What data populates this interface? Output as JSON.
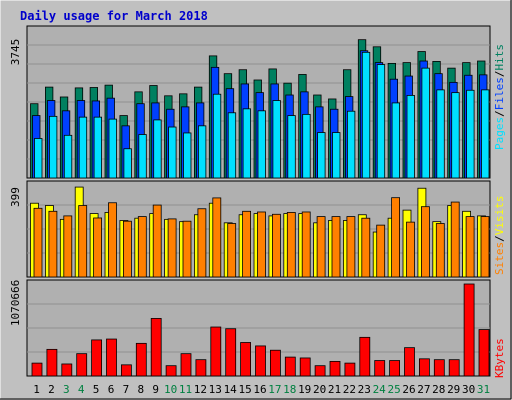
{
  "colors": {
    "background": "#c0c0c0",
    "panel_bg": "#b0b0b0",
    "hits": "#008060",
    "files": "#0040ff",
    "pages": "#00e0ff",
    "visits": "#ffff00",
    "sites": "#ff8000",
    "kbytes": "#ff0000",
    "title": "#0000cc",
    "weekend_label": "#008040",
    "weekday_label": "#000000"
  },
  "chart_data": [
    {
      "type": "bar",
      "title": "Daily usage for March 2018",
      "panel": "top",
      "ymax_label": "3745",
      "ylim": [
        0,
        3745
      ],
      "legend": [
        "Pages",
        "/",
        "Files",
        "/",
        "Hits"
      ],
      "categories": [
        "1",
        "2",
        "3",
        "4",
        "5",
        "6",
        "7",
        "8",
        "9",
        "10",
        "11",
        "12",
        "13",
        "14",
        "15",
        "16",
        "17",
        "18",
        "19",
        "20",
        "21",
        "22",
        "23",
        "24",
        "25",
        "26",
        "27",
        "28",
        "29",
        "30",
        "31"
      ],
      "series": [
        {
          "name": "Hits",
          "values": [
            1880,
            2300,
            2050,
            2280,
            2290,
            2350,
            1580,
            2180,
            2340,
            2080,
            2130,
            2300,
            3090,
            2640,
            2740,
            2480,
            2760,
            2400,
            2620,
            2100,
            2000,
            2740,
            3500,
            3320,
            2900,
            2920,
            3200,
            2950,
            2780,
            2920,
            2960
          ]
        },
        {
          "name": "Files",
          "values": [
            1580,
            1960,
            1700,
            1960,
            1950,
            2020,
            1320,
            1880,
            1900,
            1740,
            1800,
            1900,
            2800,
            2260,
            2380,
            2160,
            2380,
            2100,
            2180,
            1800,
            1740,
            2060,
            3220,
            2920,
            2500,
            2580,
            2960,
            2640,
            2420,
            2600,
            2610
          ]
        },
        {
          "name": "Pages",
          "values": [
            1000,
            1560,
            1080,
            1540,
            1540,
            1490,
            740,
            1100,
            1470,
            1290,
            1140,
            1320,
            2120,
            1650,
            1750,
            1700,
            1960,
            1580,
            1610,
            1150,
            1150,
            1690,
            3180,
            2870,
            1900,
            2090,
            2780,
            2230,
            2160,
            2220,
            2230
          ]
        }
      ]
    },
    {
      "type": "bar",
      "panel": "middle",
      "ymax_label": "399",
      "ylim": [
        0,
        399
      ],
      "legend": [
        "Sites",
        "/",
        "Visits"
      ],
      "categories": [
        "1",
        "2",
        "3",
        "4",
        "5",
        "6",
        "7",
        "8",
        "9",
        "10",
        "11",
        "12",
        "13",
        "14",
        "15",
        "16",
        "17",
        "18",
        "19",
        "20",
        "21",
        "22",
        "23",
        "24",
        "25",
        "26",
        "27",
        "28",
        "29",
        "30",
        "31"
      ],
      "series": [
        {
          "name": "Visits",
          "values": [
            320,
            310,
            250,
            390,
            275,
            280,
            245,
            255,
            275,
            250,
            240,
            270,
            320,
            235,
            270,
            275,
            265,
            275,
            275,
            235,
            245,
            245,
            270,
            195,
            255,
            290,
            385,
            240,
            310,
            285,
            265
          ]
        },
        {
          "name": "Sites",
          "values": [
            298,
            285,
            265,
            310,
            256,
            322,
            242,
            262,
            312,
            252,
            242,
            296,
            343,
            232,
            285,
            282,
            272,
            280,
            282,
            262,
            262,
            262,
            255,
            225,
            344,
            238,
            305,
            232,
            325,
            262,
            262
          ]
        }
      ]
    },
    {
      "type": "bar",
      "panel": "bottom",
      "ymax_label": "1070666",
      "ylim": [
        0,
        1070666
      ],
      "legend": [
        "KBytes"
      ],
      "categories": [
        "1",
        "2",
        "3",
        "4",
        "5",
        "6",
        "7",
        "8",
        "9",
        "10",
        "11",
        "12",
        "13",
        "14",
        "15",
        "16",
        "17",
        "18",
        "19",
        "20",
        "21",
        "22",
        "23",
        "24",
        "25",
        "26",
        "27",
        "28",
        "29",
        "30",
        "31"
      ],
      "series": [
        {
          "name": "KBytes",
          "values": [
            150000,
            310000,
            140000,
            260000,
            420000,
            430000,
            130000,
            380000,
            670000,
            120000,
            260000,
            190000,
            570000,
            550000,
            390000,
            350000,
            300000,
            220000,
            210000,
            120000,
            170000,
            150000,
            450000,
            180000,
            180000,
            330000,
            200000,
            190000,
            190000,
            1070666,
            540000
          ]
        }
      ]
    }
  ],
  "day_labels": [
    "1",
    "2",
    "3",
    "4",
    "5",
    "6",
    "7",
    "8",
    "9",
    "10",
    "11",
    "12",
    "13",
    "14",
    "15",
    "16",
    "17",
    "18",
    "19",
    "20",
    "21",
    "22",
    "23",
    "24",
    "25",
    "26",
    "27",
    "28",
    "29",
    "30",
    "31"
  ],
  "weekend_days": [
    3,
    4,
    10,
    11,
    17,
    18,
    24,
    25,
    31
  ]
}
